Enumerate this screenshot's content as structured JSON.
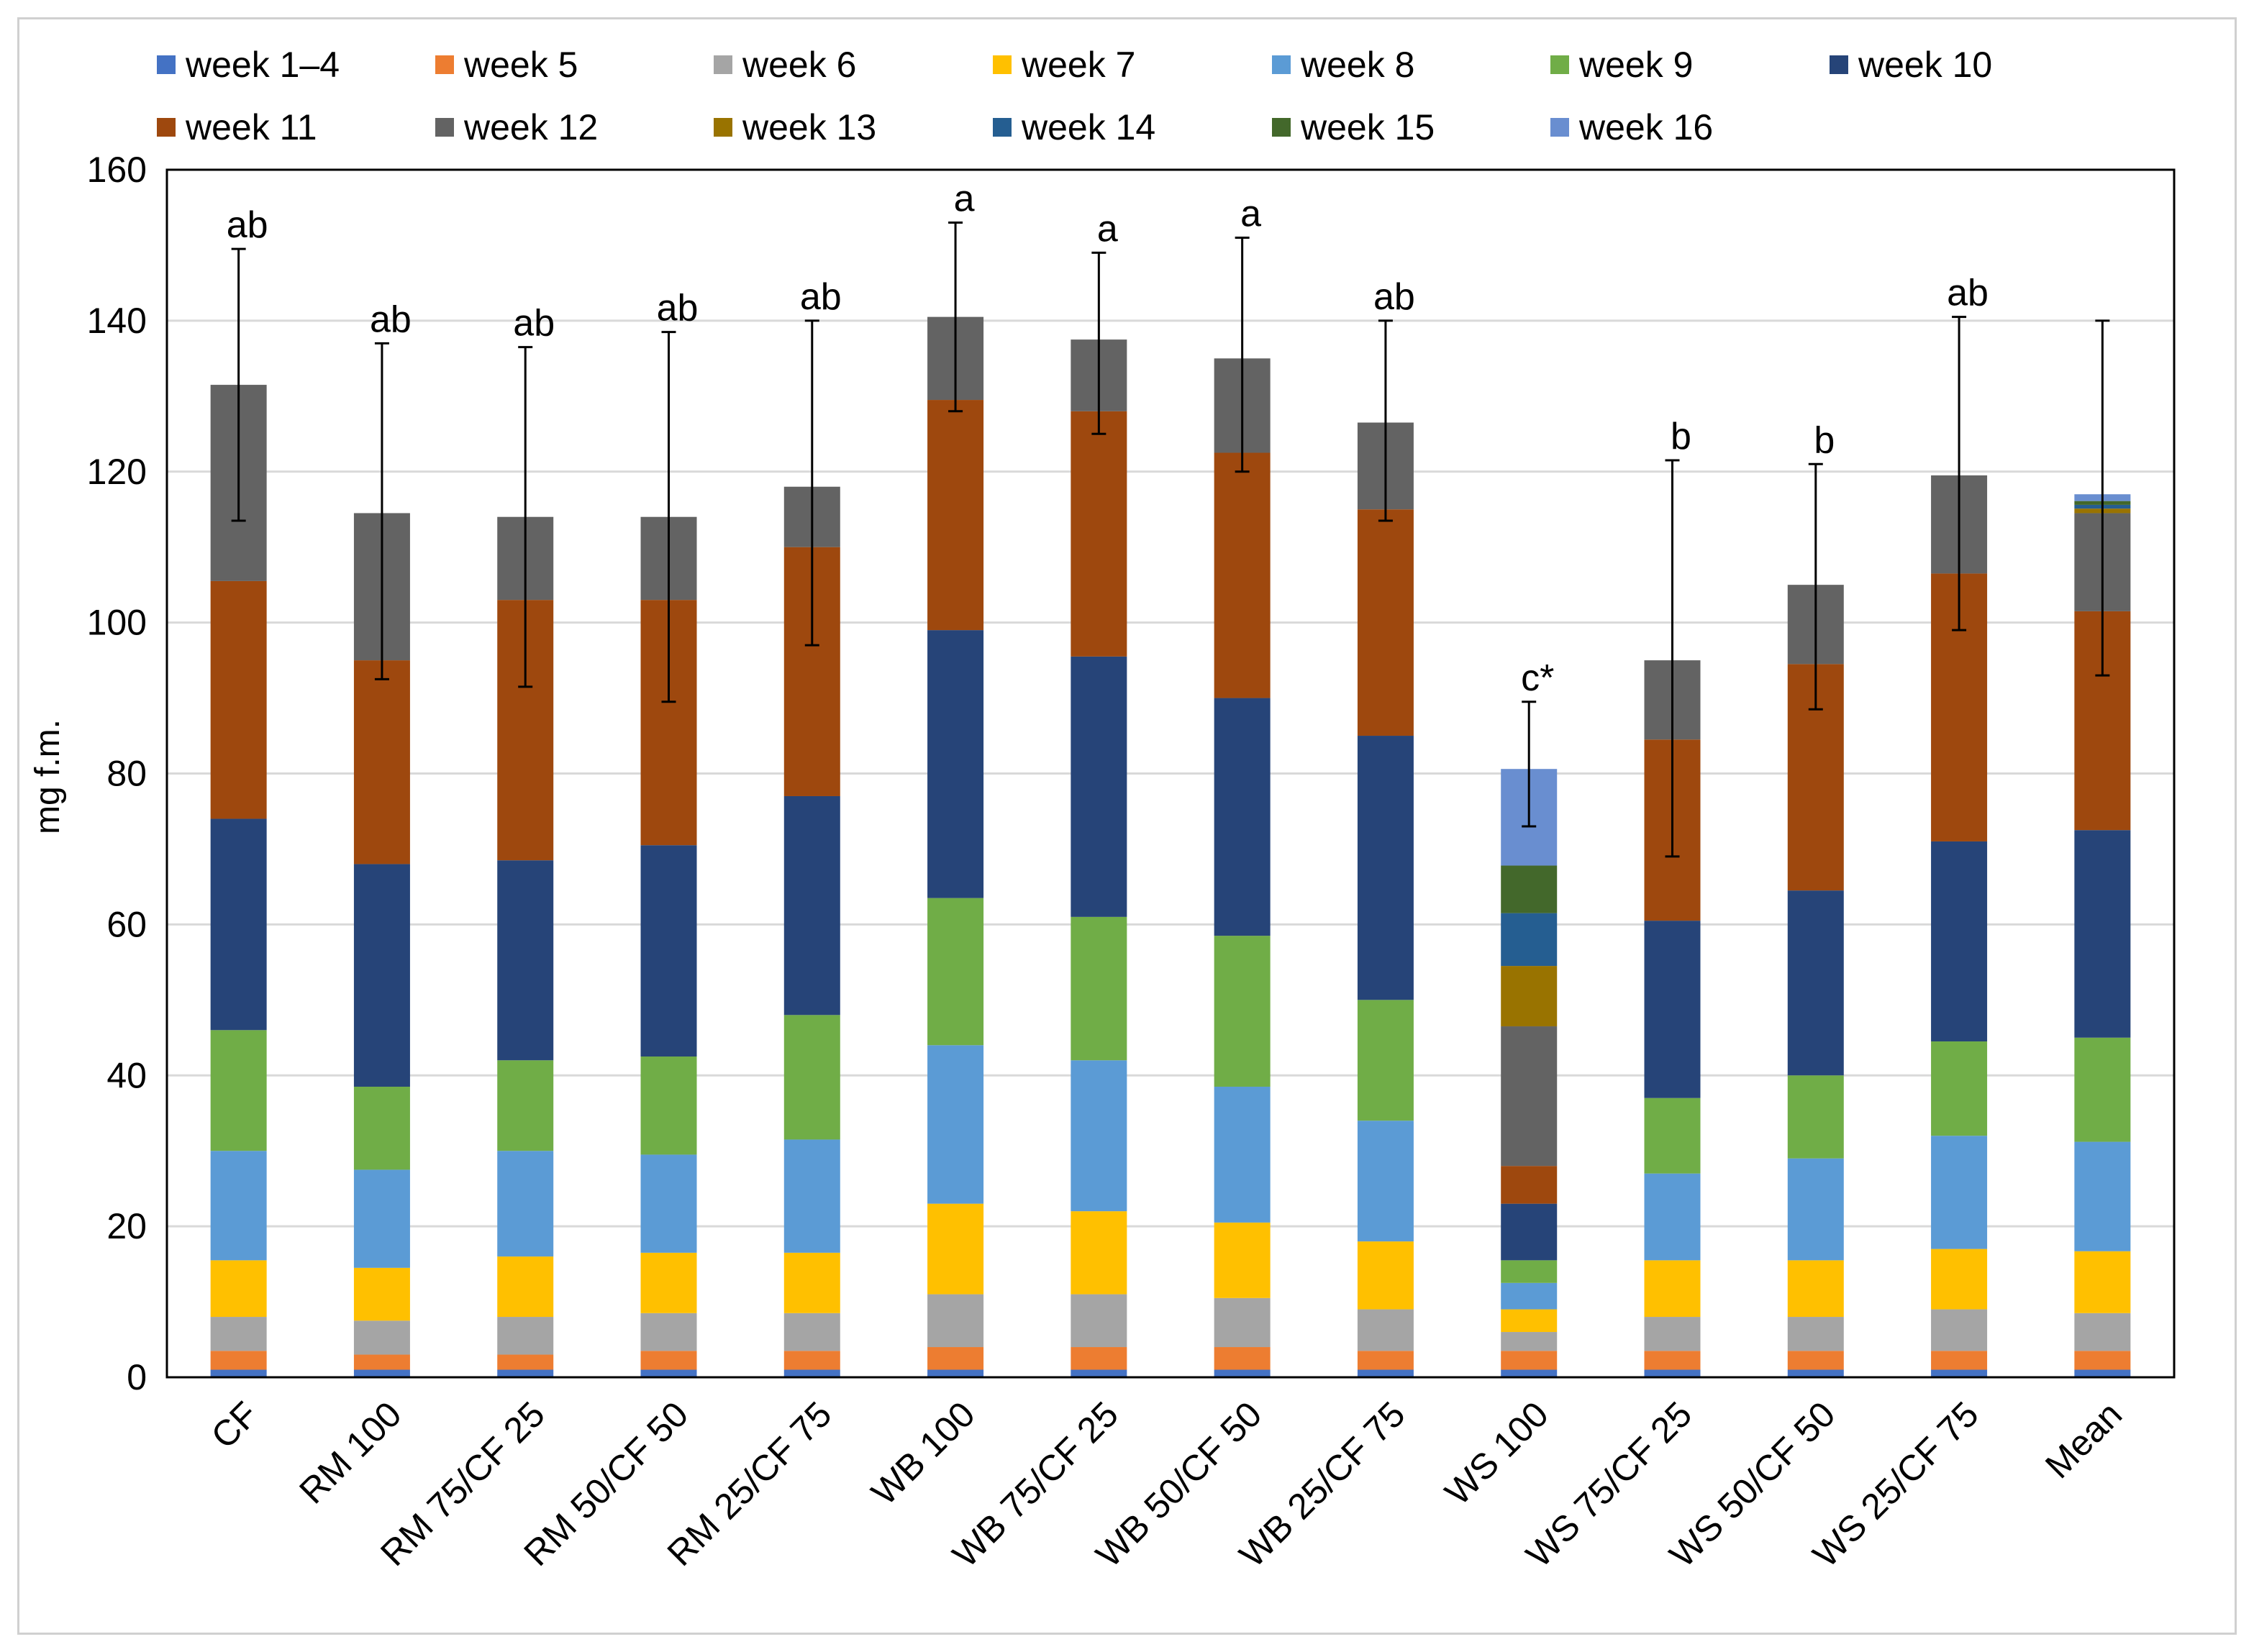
{
  "chart_data": {
    "type": "bar",
    "stacked": true,
    "title": "",
    "xlabel": "",
    "ylabel": "mg f.m.",
    "ylim": [
      0,
      160
    ],
    "yticks": [
      0,
      20,
      40,
      60,
      80,
      100,
      120,
      140,
      160
    ],
    "grid": true,
    "legend_position": "top",
    "categories": [
      "CF",
      "RM 100",
      "RM 75/CF 25",
      "RM 50/CF 50",
      "RM 25/CF 75",
      "WB 100",
      "WB 75/CF 25",
      "WB 50/CF 50",
      "WB 25/CF 75",
      "WS 100",
      "WS 75/CF 25",
      "WS 50/CF 50",
      "WS 25/CF 75",
      "Mean"
    ],
    "series": [
      {
        "name": "week 1–4",
        "color": "#4472c4",
        "values": [
          1,
          1,
          1,
          1,
          1,
          1,
          1,
          1,
          1,
          1,
          1,
          1,
          1,
          1
        ]
      },
      {
        "name": "week 5",
        "color": "#ed7d31",
        "values": [
          2.5,
          2,
          2,
          2.5,
          2.5,
          3,
          3,
          3,
          2.5,
          2.5,
          2.5,
          2.5,
          2.5,
          2.5
        ]
      },
      {
        "name": "week 6",
        "color": "#a5a5a5",
        "values": [
          4.5,
          4.5,
          5,
          5,
          5,
          7,
          7,
          6.5,
          5.5,
          2.5,
          4.5,
          4.5,
          5.5,
          5
        ]
      },
      {
        "name": "week 7",
        "color": "#ffc000",
        "values": [
          7.5,
          7,
          8,
          8,
          8,
          12,
          11,
          10,
          9,
          3,
          7.5,
          7.5,
          8,
          8.2
        ]
      },
      {
        "name": "week 8",
        "color": "#5b9bd5",
        "values": [
          14.5,
          13,
          14,
          13,
          15,
          21,
          20,
          18,
          16,
          3.5,
          11.5,
          13.5,
          15,
          14.5
        ]
      },
      {
        "name": "week 9",
        "color": "#70ad47",
        "values": [
          16,
          11,
          12,
          13,
          16.5,
          19.5,
          19,
          20,
          16,
          3,
          10,
          11,
          12.5,
          13.8
        ]
      },
      {
        "name": "week 10",
        "color": "#264478",
        "values": [
          28,
          29.5,
          26.5,
          28,
          29,
          35.5,
          34.5,
          31.5,
          35,
          7.5,
          23.5,
          24.5,
          26.5,
          27.5
        ]
      },
      {
        "name": "week 11",
        "color": "#9e480e",
        "values": [
          31.5,
          27,
          34.5,
          32.5,
          33,
          30.5,
          32.5,
          32.5,
          30,
          5,
          24,
          30,
          35.5,
          29
        ]
      },
      {
        "name": "week 12",
        "color": "#636363",
        "values": [
          26,
          19.5,
          11,
          11,
          8,
          11,
          9.5,
          12.5,
          11.5,
          18.5,
          10.5,
          10.5,
          13,
          13
        ]
      },
      {
        "name": "week 13",
        "color": "#997300",
        "values": [
          0,
          0,
          0,
          0,
          0,
          0,
          0,
          0,
          0,
          8,
          0,
          0,
          0,
          0.6
        ]
      },
      {
        "name": "week 14",
        "color": "#255e91",
        "values": [
          0,
          0,
          0,
          0,
          0,
          0,
          0,
          0,
          0,
          7,
          0,
          0,
          0,
          0.5
        ]
      },
      {
        "name": "week 15",
        "color": "#43682b",
        "values": [
          0,
          0,
          0,
          0,
          0,
          0,
          0,
          0,
          0,
          6.3,
          0,
          0,
          0,
          0.5
        ]
      },
      {
        "name": "week 16",
        "color": "#698ed0",
        "values": [
          0,
          0,
          0,
          0,
          0,
          0,
          0,
          0,
          0,
          12.8,
          0,
          0,
          0,
          0.9
        ]
      }
    ],
    "error_upper": [
      149.5,
      137,
      136.5,
      138.5,
      140,
      153,
      149,
      151,
      140,
      89.5,
      121.5,
      121,
      140.5,
      140
    ],
    "error_lower": [
      113.5,
      92.5,
      91.5,
      89.5,
      97,
      128,
      125,
      120,
      113.5,
      73,
      69,
      88.5,
      99,
      93
    ],
    "significance_labels": [
      "ab",
      "ab",
      "ab",
      "ab",
      "ab",
      "a",
      "a",
      "a",
      "ab",
      "c*",
      "b",
      "b",
      "ab",
      ""
    ]
  }
}
